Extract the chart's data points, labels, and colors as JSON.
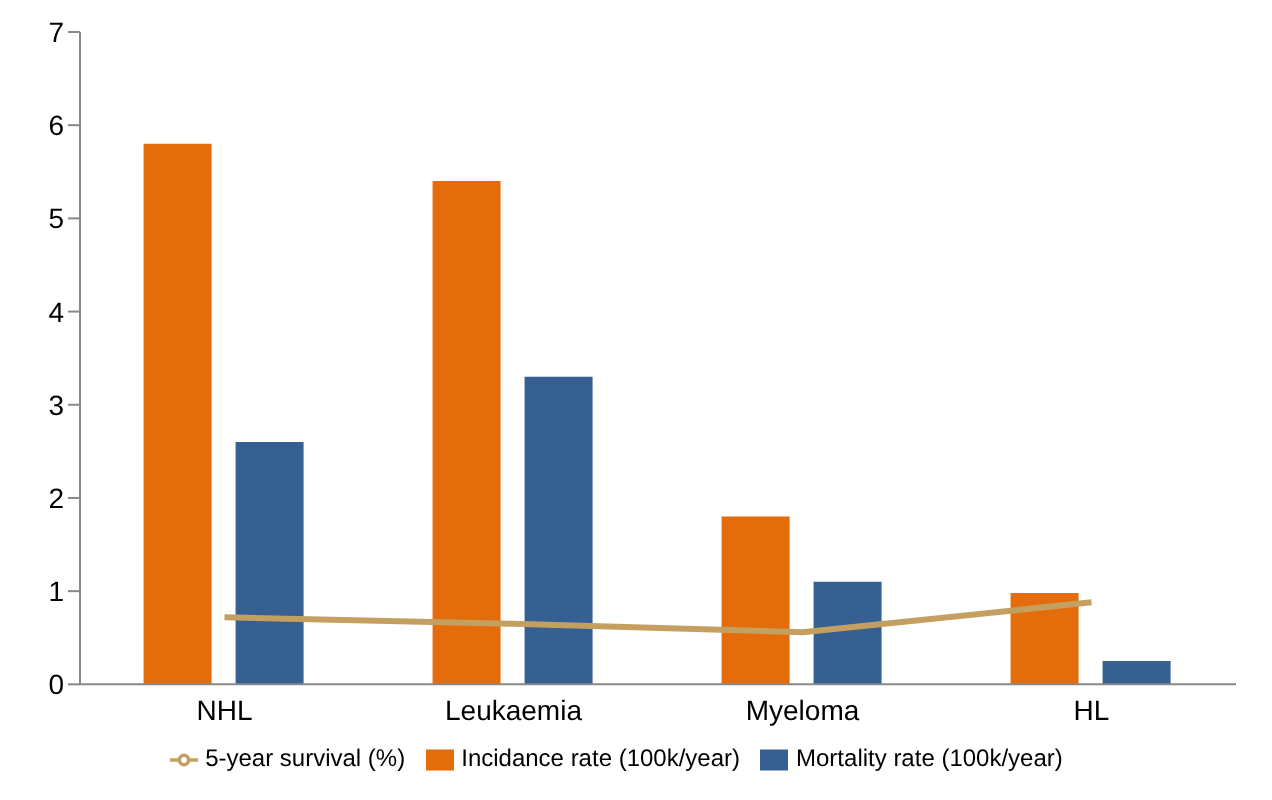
{
  "chart_data": {
    "type": "bar",
    "categories": [
      "NHL",
      "Leukaemia",
      "Myeloma",
      "HL"
    ],
    "series": [
      {
        "name": "Incidance rate (100k/year)",
        "color": "#e46c0a",
        "values": [
          5.8,
          5.4,
          1.8,
          0.98
        ]
      },
      {
        "name": "Mortality rate (100k/year)",
        "color": "#376092",
        "values": [
          2.6,
          3.3,
          1.1,
          0.25
        ]
      },
      {
        "name": "5-year survival (%)",
        "type": "line",
        "color": "#c4a060",
        "values": [
          0.72,
          0.65,
          0.56,
          0.88
        ]
      }
    ],
    "ylim": [
      0,
      7
    ],
    "yticks": [
      0,
      1,
      2,
      3,
      4,
      5,
      6,
      7
    ],
    "grid": false,
    "legend": "bottom",
    "marker": "none",
    "line_style": "solid"
  }
}
